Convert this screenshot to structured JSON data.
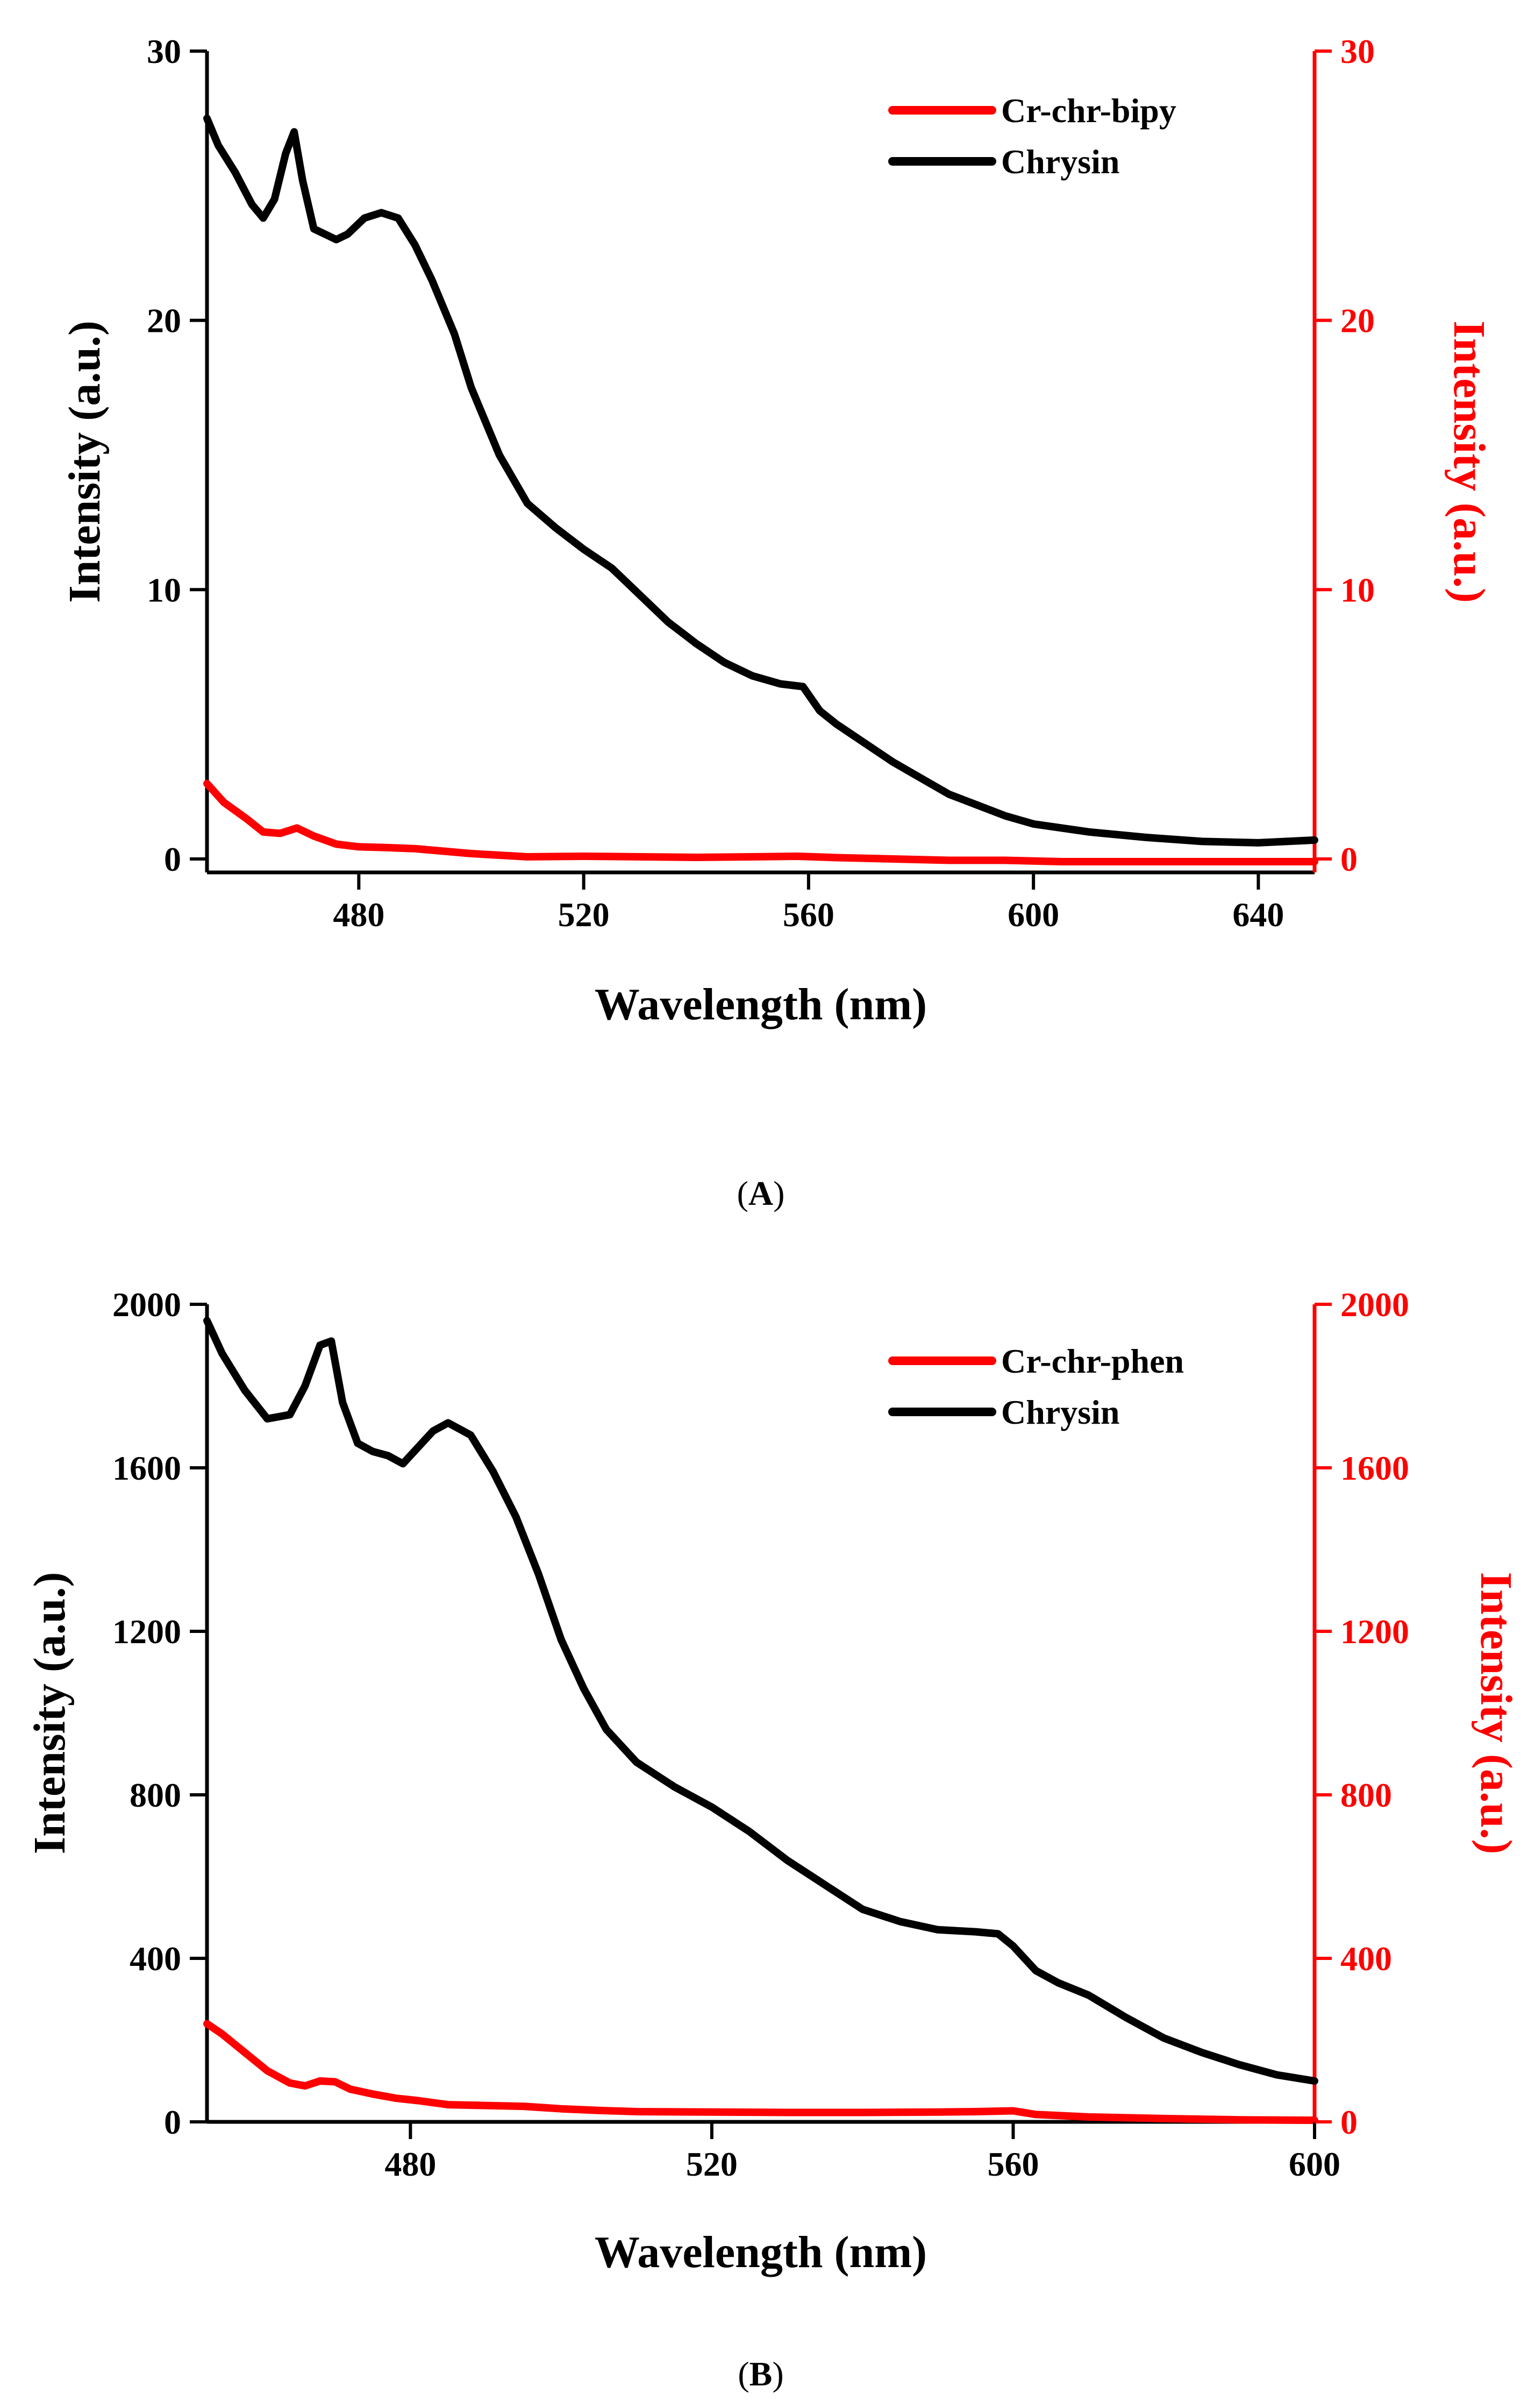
{
  "panels": [
    {
      "label": "(A)",
      "label_text": "A",
      "chart_data": {
        "type": "line",
        "xlabel": "Wavelength (nm)",
        "ylabel": "Intensity (a.u.)",
        "y2label": "Intensity (a.u.)",
        "xlim": [
          453,
          650
        ],
        "ylim": [
          -0.5,
          30
        ],
        "y2lim": [
          -0.5,
          30
        ],
        "xticks": [
          480,
          520,
          560,
          600,
          640
        ],
        "yticks": [
          0,
          10,
          20,
          30
        ],
        "y2ticks": [
          0,
          10,
          20,
          30
        ],
        "grid": false,
        "legend_position": "top-right",
        "series": [
          {
            "name": "Cr-chr-bipy",
            "color": "#ff0000",
            "axis": "right",
            "x": [
              453,
              456,
              460,
              463,
              466,
              469,
              472,
              476,
              480,
              485,
              490,
              500,
              510,
              520,
              530,
              540,
              550,
              558,
              565,
              575,
              585,
              595,
              605,
              615,
              625,
              635,
              645,
              650
            ],
            "y": [
              2.8,
              2.1,
              1.5,
              1.0,
              0.95,
              1.15,
              0.85,
              0.55,
              0.45,
              0.42,
              0.38,
              0.2,
              0.08,
              0.1,
              0.08,
              0.06,
              0.08,
              0.1,
              0.05,
              0.0,
              -0.05,
              -0.05,
              -0.1,
              -0.1,
              -0.1,
              -0.1,
              -0.1,
              -0.1
            ]
          },
          {
            "name": "Chrysin",
            "color": "#000000",
            "axis": "left",
            "x": [
              453,
              455,
              458,
              461,
              463,
              465,
              467,
              468.5,
              470,
              472,
              474,
              476,
              478,
              481,
              484,
              487,
              490,
              493,
              497,
              500,
              505,
              510,
              515,
              520,
              525,
              530,
              535,
              540,
              545,
              550,
              555,
              559,
              562,
              565,
              570,
              575,
              580,
              585,
              590,
              595,
              600,
              610,
              620,
              630,
              640,
              650
            ],
            "y": [
              27.5,
              26.5,
              25.5,
              24.3,
              23.8,
              24.5,
              26.2,
              27.0,
              25.2,
              23.4,
              23.2,
              23.0,
              23.2,
              23.8,
              24.0,
              23.8,
              22.8,
              21.5,
              19.5,
              17.5,
              15.0,
              13.2,
              12.3,
              11.5,
              10.8,
              9.8,
              8.8,
              8.0,
              7.3,
              6.8,
              6.5,
              6.4,
              5.5,
              5.0,
              4.3,
              3.6,
              3.0,
              2.4,
              2.0,
              1.6,
              1.3,
              1.0,
              0.8,
              0.65,
              0.6,
              0.7
            ]
          }
        ]
      }
    },
    {
      "label": "(B)",
      "label_text": "B",
      "chart_data": {
        "type": "line",
        "xlabel": "Wavelength (nm)",
        "ylabel": "Intensity (a.u.)",
        "y2label": "Intensity (a.u.)",
        "xlim": [
          453,
          600
        ],
        "ylim": [
          0,
          2000
        ],
        "y2lim": [
          0,
          2000
        ],
        "xticks": [
          480,
          520,
          560,
          600
        ],
        "yticks": [
          0,
          400,
          800,
          1200,
          1600,
          2000
        ],
        "y2ticks": [
          0,
          400,
          800,
          1200,
          1600,
          2000
        ],
        "grid": false,
        "legend_position": "top-right",
        "series": [
          {
            "name": "Cr-chr-phen",
            "color": "#ff0000",
            "axis": "right",
            "x": [
              453,
              455,
              458,
              461,
              464,
              466,
              468,
              470,
              472,
              475,
              478,
              481,
              485,
              490,
              495,
              500,
              505,
              510,
              520,
              530,
              540,
              550,
              555,
              560,
              563,
              570,
              580,
              590,
              600
            ],
            "y": [
              240,
              215,
              170,
              125,
              95,
              88,
              100,
              98,
              80,
              68,
              58,
              52,
              42,
              40,
              38,
              32,
              28,
              25,
              24,
              23,
              23,
              24,
              25,
              27,
              18,
              12,
              8,
              5,
              4
            ]
          },
          {
            "name": "Chrysin",
            "color": "#000000",
            "axis": "left",
            "x": [
              453,
              455,
              458,
              461,
              464,
              466,
              468,
              469.5,
              471,
              473,
              475,
              477,
              479,
              481,
              483,
              485,
              488,
              491,
              494,
              497,
              500,
              503,
              506,
              510,
              515,
              520,
              525,
              530,
              535,
              540,
              545,
              550,
              555,
              558,
              560,
              563,
              566,
              570,
              575,
              580,
              585,
              590,
              595,
              600
            ],
            "y": [
              1960,
              1880,
              1790,
              1720,
              1730,
              1800,
              1900,
              1910,
              1760,
              1660,
              1640,
              1630,
              1610,
              1650,
              1690,
              1710,
              1680,
              1590,
              1480,
              1340,
              1180,
              1060,
              960,
              880,
              820,
              770,
              710,
              640,
              580,
              520,
              490,
              470,
              465,
              460,
              430,
              370,
              340,
              310,
              255,
              205,
              170,
              140,
              115,
              100
            ]
          }
        ]
      }
    }
  ]
}
